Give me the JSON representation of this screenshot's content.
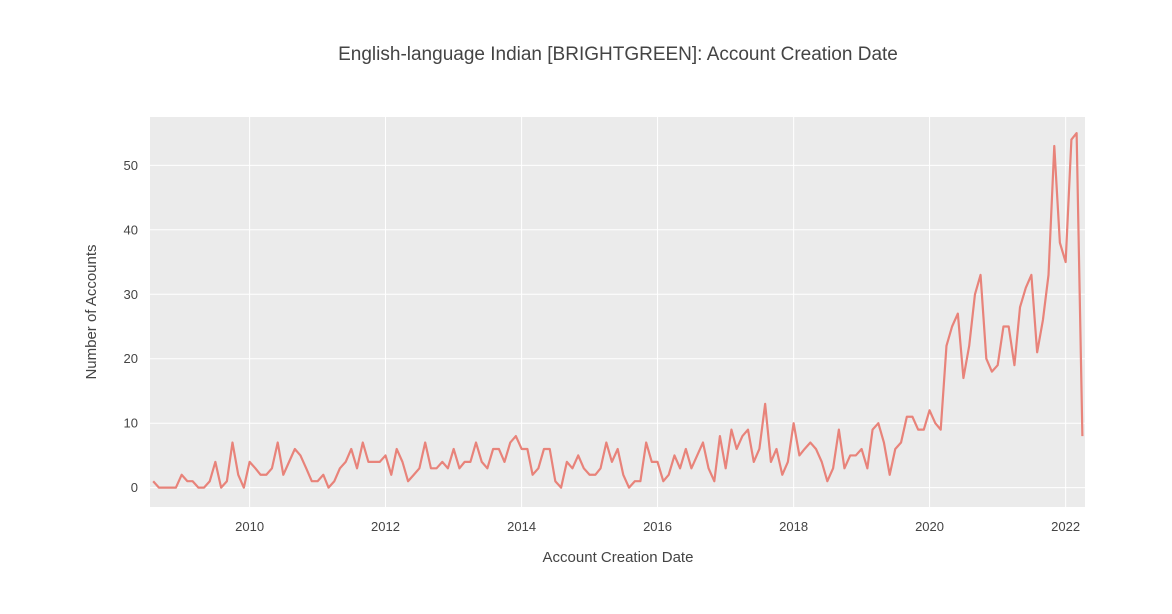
{
  "chart_data": {
    "type": "line",
    "title": "English-language Indian [BRIGHTGREEN]: Account Creation Date",
    "xlabel": "Account Creation Date",
    "ylabel": "Number of Accounts",
    "x_ticks": [
      "2010",
      "2012",
      "2014",
      "2016",
      "2018",
      "2020",
      "2022"
    ],
    "y_ticks": [
      "0",
      "10",
      "20",
      "30",
      "40",
      "50"
    ],
    "xlim": [
      "2008-07-15",
      "2022-04-15"
    ],
    "ylim": [
      -3,
      57.5
    ],
    "grid": true,
    "line_color": "#e8837a",
    "plot_bg": "#ebebeb",
    "series": [
      {
        "x": [
          "2008-08",
          "2008-09",
          "2008-10",
          "2008-11",
          "2008-12",
          "2009-01",
          "2009-02",
          "2009-03",
          "2009-04",
          "2009-05",
          "2009-06",
          "2009-07",
          "2009-08",
          "2009-09",
          "2009-10",
          "2009-11",
          "2009-12",
          "2010-01",
          "2010-02",
          "2010-03",
          "2010-04",
          "2010-05",
          "2010-06",
          "2010-07",
          "2010-08",
          "2010-09",
          "2010-10",
          "2010-11",
          "2010-12",
          "2011-01",
          "2011-02",
          "2011-03",
          "2011-04",
          "2011-05",
          "2011-06",
          "2011-07",
          "2011-08",
          "2011-09",
          "2011-10",
          "2011-11",
          "2011-12",
          "2012-01",
          "2012-02",
          "2012-03",
          "2012-04",
          "2012-05",
          "2012-06",
          "2012-07",
          "2012-08",
          "2012-09",
          "2012-10",
          "2012-11",
          "2012-12",
          "2013-01",
          "2013-02",
          "2013-03",
          "2013-04",
          "2013-05",
          "2013-06",
          "2013-07",
          "2013-08",
          "2013-09",
          "2013-10",
          "2013-11",
          "2013-12",
          "2014-01",
          "2014-02",
          "2014-03",
          "2014-04",
          "2014-05",
          "2014-06",
          "2014-07",
          "2014-08",
          "2014-09",
          "2014-10",
          "2014-11",
          "2014-12",
          "2015-01",
          "2015-02",
          "2015-03",
          "2015-04",
          "2015-05",
          "2015-06",
          "2015-07",
          "2015-08",
          "2015-09",
          "2015-10",
          "2015-11",
          "2015-12",
          "2016-01",
          "2016-02",
          "2016-03",
          "2016-04",
          "2016-05",
          "2016-06",
          "2016-07",
          "2016-08",
          "2016-09",
          "2016-10",
          "2016-11",
          "2016-12",
          "2017-01",
          "2017-02",
          "2017-03",
          "2017-04",
          "2017-05",
          "2017-06",
          "2017-07",
          "2017-08",
          "2017-09",
          "2017-10",
          "2017-11",
          "2017-12",
          "2018-01",
          "2018-02",
          "2018-03",
          "2018-04",
          "2018-05",
          "2018-06",
          "2018-07",
          "2018-08",
          "2018-09",
          "2018-10",
          "2018-11",
          "2018-12",
          "2019-01",
          "2019-02",
          "2019-03",
          "2019-04",
          "2019-05",
          "2019-06",
          "2019-07",
          "2019-08",
          "2019-09",
          "2019-10",
          "2019-11",
          "2019-12",
          "2020-01",
          "2020-02",
          "2020-03",
          "2020-04",
          "2020-05",
          "2020-06",
          "2020-07",
          "2020-08",
          "2020-09",
          "2020-10",
          "2020-11",
          "2020-12",
          "2021-01",
          "2021-02",
          "2021-03",
          "2021-04",
          "2021-05",
          "2021-06",
          "2021-07",
          "2021-08",
          "2021-09",
          "2021-10",
          "2021-11",
          "2021-12",
          "2022-01",
          "2022-02",
          "2022-03",
          "2022-04"
        ],
        "y": [
          1,
          0,
          0,
          0,
          0,
          2,
          1,
          1,
          0,
          0,
          1,
          4,
          0,
          1,
          7,
          2,
          0,
          4,
          3,
          2,
          2,
          3,
          7,
          2,
          4,
          6,
          5,
          3,
          1,
          1,
          2,
          0,
          1,
          3,
          4,
          6,
          3,
          7,
          4,
          4,
          4,
          5,
          2,
          6,
          4,
          1,
          2,
          3,
          7,
          3,
          3,
          4,
          3,
          6,
          3,
          4,
          4,
          7,
          4,
          3,
          6,
          6,
          4,
          7,
          8,
          6,
          6,
          2,
          3,
          6,
          6,
          1,
          0,
          4,
          3,
          5,
          3,
          2,
          2,
          3,
          7,
          4,
          6,
          2,
          0,
          1,
          1,
          7,
          4,
          4,
          1,
          2,
          5,
          3,
          6,
          3,
          5,
          7,
          3,
          1,
          8,
          3,
          9,
          6,
          8,
          9,
          4,
          6,
          13,
          4,
          6,
          2,
          4,
          10,
          5,
          6,
          7,
          6,
          4,
          1,
          3,
          9,
          3,
          5,
          5,
          6,
          3,
          9,
          10,
          7,
          2,
          6,
          7,
          11,
          11,
          9,
          9,
          12,
          10,
          9,
          22,
          25,
          27,
          17,
          22,
          30,
          33,
          20,
          18,
          19,
          25,
          25,
          19,
          28,
          31,
          33,
          21,
          26,
          33,
          53,
          38,
          35,
          54,
          55,
          8
        ]
      }
    ]
  }
}
